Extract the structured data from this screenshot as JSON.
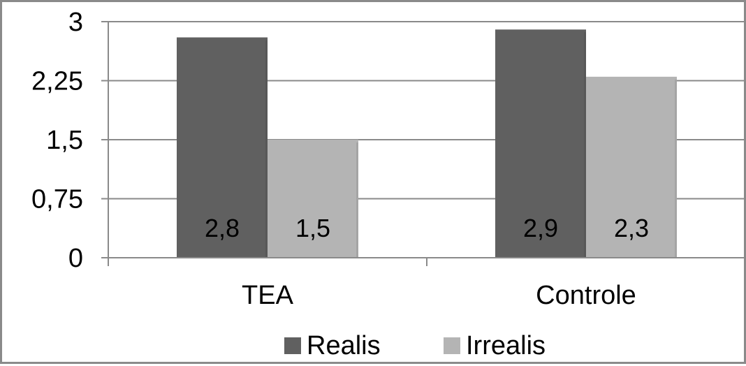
{
  "chart_data": {
    "type": "bar",
    "categories": [
      "TEA",
      "Controle"
    ],
    "series": [
      {
        "name": "Realis",
        "values": [
          2.8,
          2.9
        ],
        "labels": [
          "2,8",
          "2,9"
        ],
        "color": "#606060"
      },
      {
        "name": "Irrealis",
        "values": [
          1.5,
          2.3
        ],
        "labels": [
          "1,5",
          "2,3"
        ],
        "color": "#b4b4b4"
      }
    ],
    "yticks": [
      {
        "value": 0,
        "label": "0"
      },
      {
        "value": 0.75,
        "label": "0,75"
      },
      {
        "value": 1.5,
        "label": "1,5"
      },
      {
        "value": 2.25,
        "label": "2,25"
      },
      {
        "value": 3,
        "label": "3"
      }
    ],
    "ylim": [
      0,
      3
    ],
    "grid": true,
    "legend_position": "bottom",
    "data_labels_position": "inside-base"
  }
}
